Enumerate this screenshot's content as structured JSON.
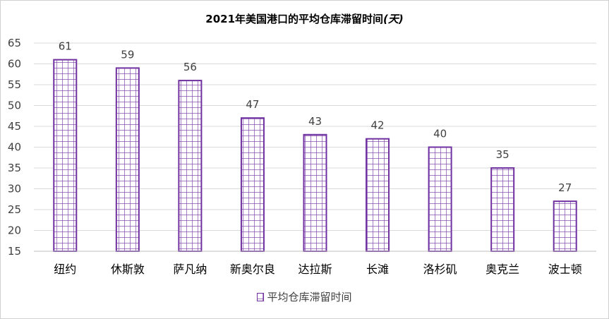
{
  "chart_data": {
    "type": "bar",
    "title": "2021年美国港口的平均仓库滞留时间",
    "title_unit": "(天)",
    "categories": [
      "纽约",
      "休斯敦",
      "萨凡纳",
      "新奥尔良",
      "达拉斯",
      "长滩",
      "洛杉矶",
      "奥克兰",
      "波士顿"
    ],
    "series": [
      {
        "name": "平均仓库滞留时间",
        "values": [
          61,
          59,
          56,
          47,
          43,
          42,
          40,
          35,
          27
        ]
      }
    ],
    "ylim": [
      15,
      65
    ],
    "yticks": [
      15,
      20,
      25,
      30,
      35,
      40,
      45,
      50,
      55,
      60,
      65
    ],
    "grid": true,
    "legend_position": "bottom",
    "colors": {
      "bar_stroke": "#7030a0",
      "bar_fill": "#ffffff",
      "grid": "#d9d9d9",
      "axis": "#bfbfbf",
      "text": "#404040"
    }
  }
}
